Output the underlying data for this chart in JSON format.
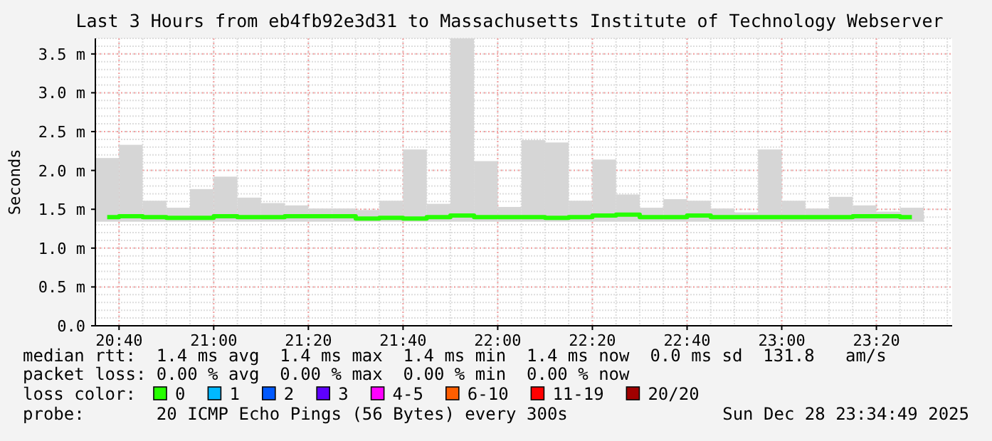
{
  "chart_data": {
    "type": "step",
    "title": "Last 3 Hours from eb4fb92e3d31 to Massachusetts Institute of Technology Webserver",
    "ylabel": "Seconds",
    "x": [
      20.625,
      20.7083,
      20.7917,
      20.875,
      20.9583,
      21.0417,
      21.125,
      21.2083,
      21.2917,
      21.375,
      21.4583,
      21.5417,
      21.625,
      21.7083,
      21.7917,
      21.875,
      21.9583,
      22.0417,
      22.125,
      22.2083,
      22.2917,
      22.375,
      22.4583,
      22.5417,
      22.625,
      22.7083,
      22.7917,
      22.875,
      22.9583,
      23.0417,
      23.125,
      23.2083,
      23.2917,
      23.375,
      23.4583
    ],
    "xlim": [
      20.5833,
      23.6
    ],
    "xticks": [
      {
        "value": 20.6667,
        "label": "20:40"
      },
      {
        "value": 21,
        "label": "21:00"
      },
      {
        "value": 21.3333,
        "label": "21:20"
      },
      {
        "value": 21.6667,
        "label": "21:40"
      },
      {
        "value": 22,
        "label": "22:00"
      },
      {
        "value": 22.3333,
        "label": "22:20"
      },
      {
        "value": 22.6667,
        "label": "22:40"
      },
      {
        "value": 23,
        "label": "23:00"
      },
      {
        "value": 23.3333,
        "label": "23:20"
      }
    ],
    "ylim": [
      0,
      3.7
    ],
    "yticks": [
      {
        "value": 0,
        "label": "0.0"
      },
      {
        "value": 0.5,
        "label": "0.5 m"
      },
      {
        "value": 1,
        "label": "1.0 m"
      },
      {
        "value": 1.5,
        "label": "1.5 m"
      },
      {
        "value": 2,
        "label": "2.0 m"
      },
      {
        "value": 2.5,
        "label": "2.5 m"
      },
      {
        "value": 3,
        "label": "3.0 m"
      },
      {
        "value": 3.5,
        "label": "3.5 m"
      }
    ],
    "grid": true,
    "legend": "bottom",
    "legend_title": "loss color:",
    "series": [
      {
        "type": "bar",
        "color": "#d6d6d6",
        "base": [
          1.34,
          1.34,
          1.34,
          1.34,
          1.34,
          1.34,
          1.34,
          1.34,
          1.34,
          1.34,
          1.34,
          1.34,
          1.34,
          1.34,
          1.34,
          1.34,
          1.34,
          1.34,
          1.34,
          1.34,
          1.34,
          1.34,
          1.34,
          1.34,
          1.34,
          1.34,
          1.34,
          1.34,
          1.34,
          1.34,
          1.34,
          1.34,
          1.34,
          1.34,
          1.34
        ],
        "values": [
          0.82,
          0.99,
          0.27,
          0.18,
          0.42,
          0.58,
          0.31,
          0.24,
          0.21,
          0.17,
          0.17,
          0.15,
          0.27,
          0.93,
          0.23,
          2.36,
          0.78,
          0.19,
          1.05,
          1.02,
          0.27,
          0.8,
          0.35,
          0.18,
          0.29,
          0.27,
          0.17,
          0.12,
          0.93,
          0.27,
          0.17,
          0.32,
          0.21,
          0.13,
          0.18
        ]
      },
      {
        "name": "0",
        "color": "#26ff00",
        "values": [
          1.4,
          1.41,
          1.4,
          1.39,
          1.39,
          1.41,
          1.4,
          1.4,
          1.41,
          1.41,
          1.41,
          1.38,
          1.39,
          1.38,
          1.4,
          1.42,
          1.4,
          1.4,
          1.4,
          1.39,
          1.4,
          1.42,
          1.43,
          1.4,
          1.4,
          1.42,
          1.4,
          1.4,
          1.4,
          1.4,
          1.4,
          1.4,
          1.41,
          1.41,
          1.4
        ]
      },
      {
        "name": "1",
        "color": "#00b8ff",
        "values": [
          null,
          null,
          null,
          null,
          null,
          null,
          null,
          null,
          null,
          null,
          null,
          null,
          null,
          null,
          null,
          null,
          null,
          null,
          null,
          null,
          null,
          null,
          null,
          null,
          null,
          null,
          null,
          null,
          null,
          null,
          null,
          null,
          null,
          null,
          null
        ]
      },
      {
        "name": "2",
        "color": "#0059ff",
        "values": [
          null,
          null,
          null,
          null,
          null,
          null,
          null,
          null,
          null,
          null,
          null,
          null,
          null,
          null,
          null,
          null,
          null,
          null,
          null,
          null,
          null,
          null,
          null,
          null,
          null,
          null,
          null,
          null,
          null,
          null,
          null,
          null,
          null,
          null,
          null
        ]
      },
      {
        "name": "3",
        "color": "#5e00ff",
        "values": [
          null,
          null,
          null,
          null,
          null,
          null,
          null,
          null,
          null,
          null,
          null,
          null,
          null,
          null,
          null,
          null,
          null,
          null,
          null,
          null,
          null,
          null,
          null,
          null,
          null,
          null,
          null,
          null,
          null,
          null,
          null,
          null,
          null,
          null,
          null
        ]
      },
      {
        "name": "4-5",
        "color": "#ff00ff",
        "values": [
          null,
          null,
          null,
          null,
          null,
          null,
          null,
          null,
          null,
          null,
          null,
          null,
          null,
          null,
          null,
          null,
          null,
          null,
          null,
          null,
          null,
          null,
          null,
          null,
          null,
          null,
          null,
          null,
          null,
          null,
          null,
          null,
          null,
          null,
          null
        ]
      },
      {
        "name": "6-10",
        "color": "#ff5e00",
        "values": [
          null,
          null,
          null,
          null,
          null,
          null,
          null,
          null,
          null,
          null,
          null,
          null,
          null,
          null,
          null,
          null,
          null,
          null,
          null,
          null,
          null,
          null,
          null,
          null,
          null,
          null,
          null,
          null,
          null,
          null,
          null,
          null,
          null,
          null,
          null
        ]
      },
      {
        "name": "11-19",
        "color": "#ff0000",
        "values": [
          null,
          null,
          null,
          null,
          null,
          null,
          null,
          null,
          null,
          null,
          null,
          null,
          null,
          null,
          null,
          null,
          null,
          null,
          null,
          null,
          null,
          null,
          null,
          null,
          null,
          null,
          null,
          null,
          null,
          null,
          null,
          null,
          null,
          null,
          null
        ]
      },
      {
        "name": "20/20",
        "color": "#a00000",
        "values": [
          null,
          null,
          null,
          null,
          null,
          null,
          null,
          null,
          null,
          null,
          null,
          null,
          null,
          null,
          null,
          null,
          null,
          null,
          null,
          null,
          null,
          null,
          null,
          null,
          null,
          null,
          null,
          null,
          null,
          null,
          null,
          null,
          null,
          null,
          null
        ]
      }
    ],
    "annotations": [
      "median rtt:  1.4 ms avg  1.4 ms max  1.4 ms min  1.4 ms now  0.0 ms sd  131.8   am/s",
      "packet loss: 0.00 % avg  0.00 % max  0.00 % min  0.00 % now",
      "probe:       20 ICMP Echo Pings (56 Bytes) every 300s",
      "Sun Dec 28 23:34:49 2025"
    ]
  }
}
